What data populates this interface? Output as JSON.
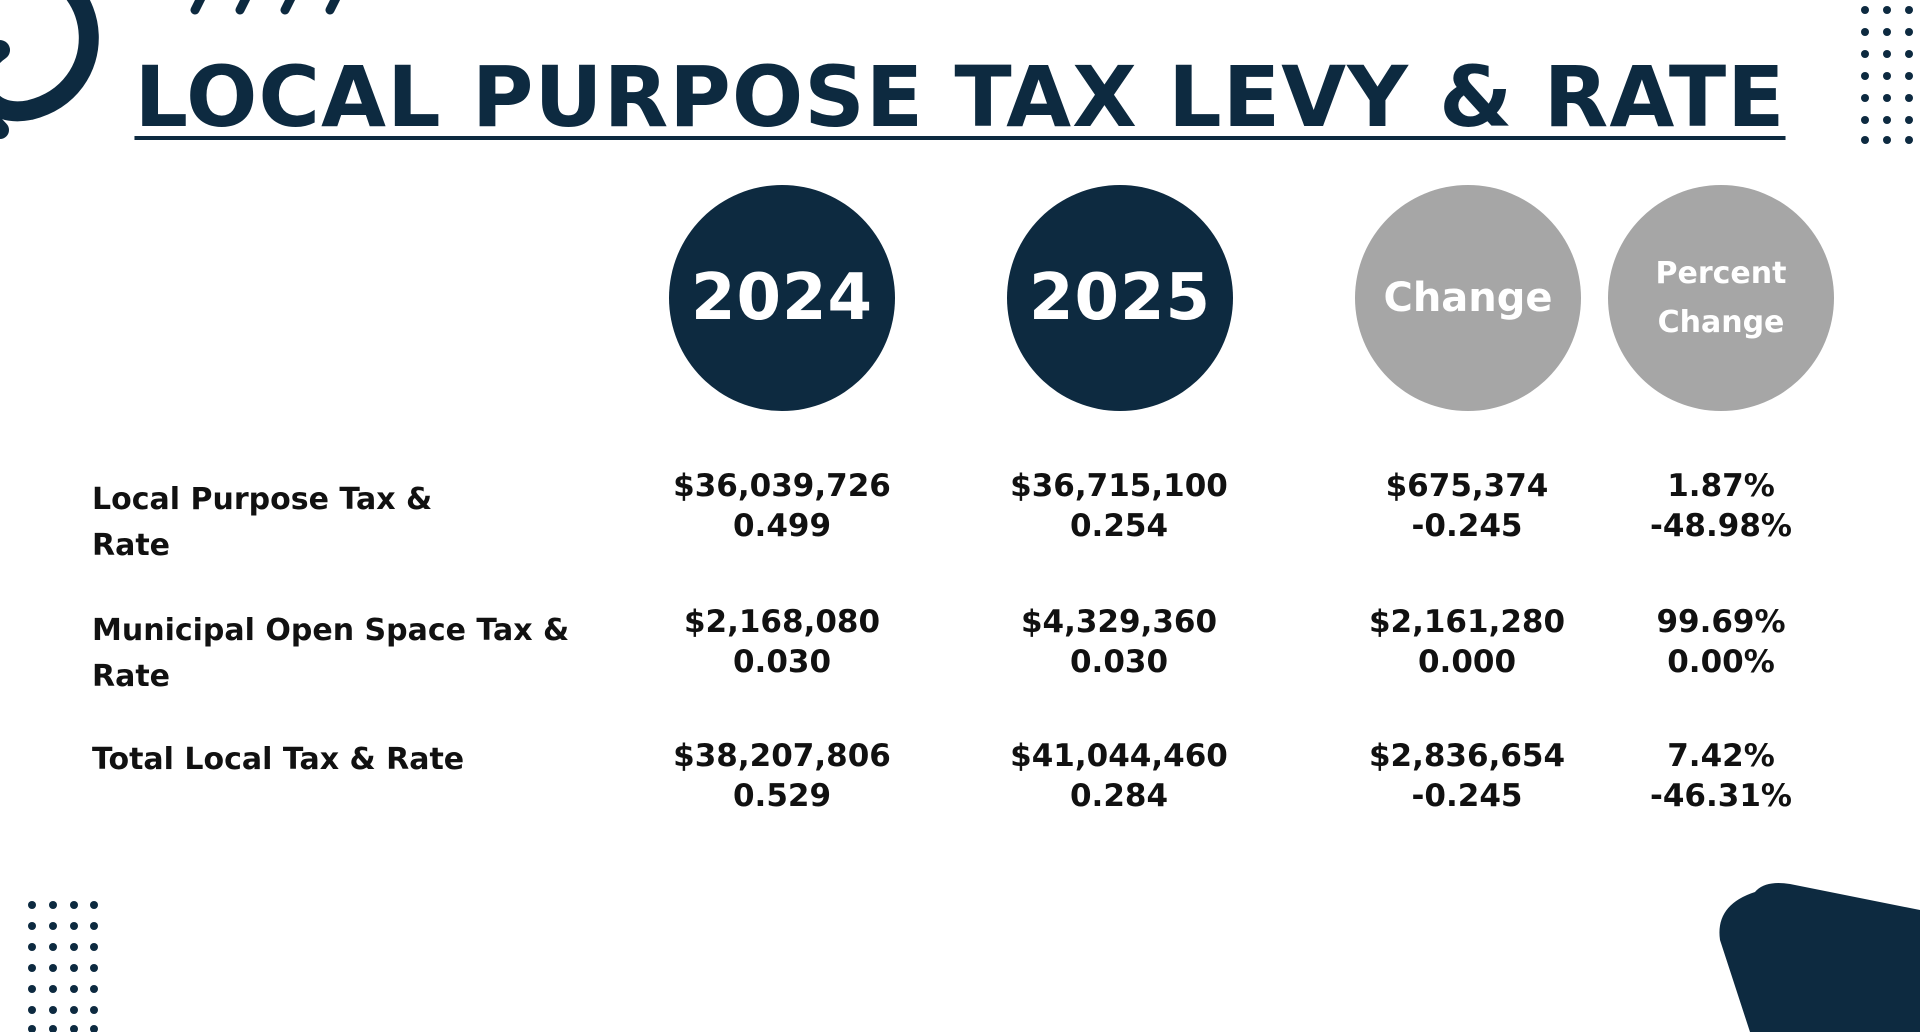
{
  "title": "LOCAL PURPOSE TAX LEVY & RATE",
  "colors": {
    "navy": "#0d2a40",
    "grey": "#a6a6a6",
    "text": "#111111",
    "background": "#ffffff"
  },
  "headers": {
    "year1": "2024",
    "year2": "2025",
    "change": "Change",
    "percent_line1": "Percent",
    "percent_line2": "Change"
  },
  "rows": [
    {
      "label_line1": "Local Purpose Tax &",
      "label_line2": "Rate",
      "y2024": [
        "$36,039,726",
        "0.499"
      ],
      "y2025": [
        "$36,715,100",
        "0.254"
      ],
      "change": [
        "$675,374",
        "-0.245"
      ],
      "percent": [
        "1.87%",
        "-48.98%"
      ]
    },
    {
      "label_line1": "Municipal Open Space Tax &",
      "label_line2": "Rate",
      "y2024": [
        "$2,168,080",
        "0.030"
      ],
      "y2025": [
        "$4,329,360",
        "0.030"
      ],
      "change": [
        "$2,161,280",
        "0.000"
      ],
      "percent": [
        "99.69%",
        "0.00%"
      ]
    },
    {
      "label_line1": "Total Local Tax & Rate",
      "label_line2": "",
      "y2024": [
        "$38,207,806",
        "0.529"
      ],
      "y2025": [
        "$41,044,460",
        "0.284"
      ],
      "change": [
        "$2,836,654",
        "-0.245"
      ],
      "percent": [
        "7.42%",
        "-46.31%"
      ]
    }
  ]
}
